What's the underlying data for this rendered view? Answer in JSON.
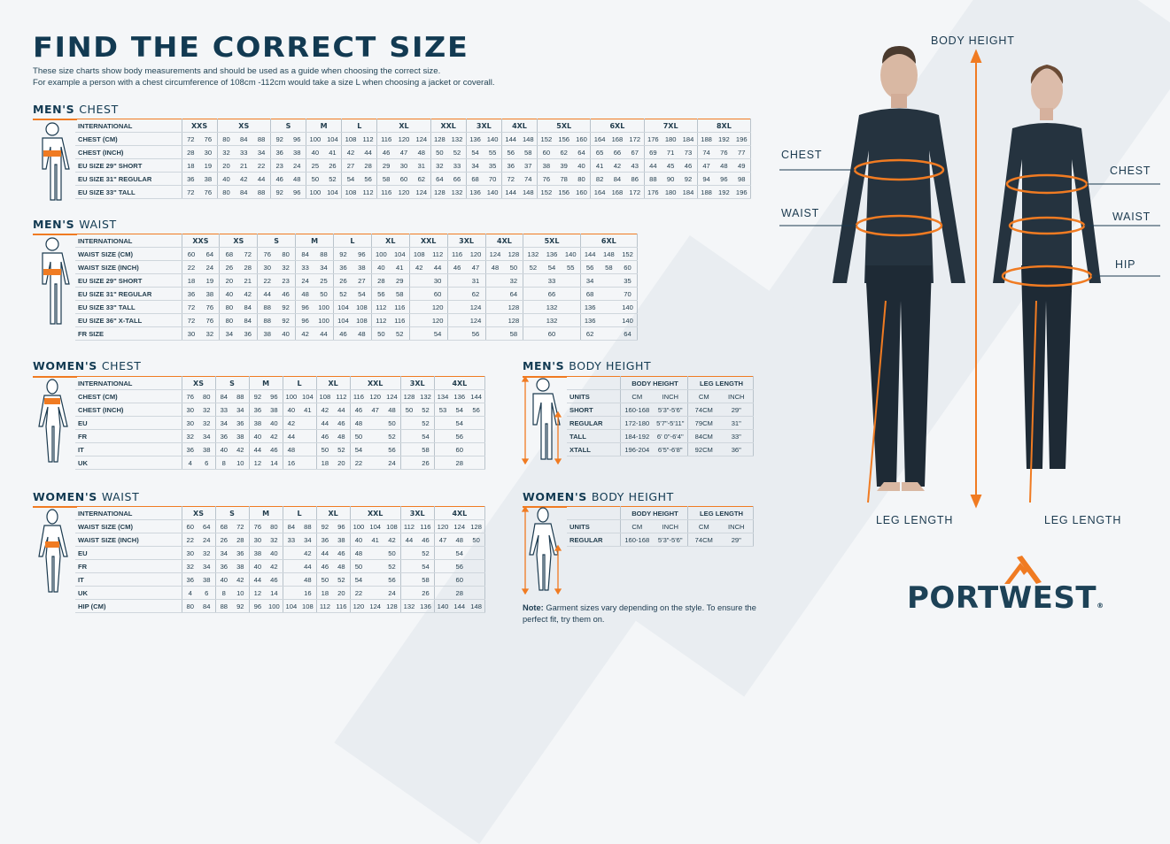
{
  "header": {
    "title": "FIND THE CORRECT SIZE",
    "line1": "These size charts show body measurements and should be used as a guide when choosing the correct size.",
    "line2": "For example a person with a chest circumference of 108cm -112cm would take a size L when choosing a jacket or coverall."
  },
  "colors": {
    "accent": "#f07b22",
    "navy": "#123a52"
  },
  "tables": {
    "mens_chest": {
      "heading_bold": "MEN'S",
      "heading_light": "CHEST",
      "header_label": "INTERNATIONAL",
      "sizes": [
        {
          "label": "XXS",
          "span": 2
        },
        {
          "label": "XS",
          "span": 3
        },
        {
          "label": "S",
          "span": 2
        },
        {
          "label": "M",
          "span": 2
        },
        {
          "label": "L",
          "span": 2
        },
        {
          "label": "XL",
          "span": 3
        },
        {
          "label": "XXL",
          "span": 2
        },
        {
          "label": "3XL",
          "span": 2
        },
        {
          "label": "4XL",
          "span": 2
        },
        {
          "label": "5XL",
          "span": 3
        },
        {
          "label": "6XL",
          "span": 3
        },
        {
          "label": "7XL",
          "span": 3
        },
        {
          "label": "8XL",
          "span": 3
        }
      ],
      "rows": [
        {
          "label": "CHEST (CM)",
          "cells": [
            "72",
            "76",
            "80",
            "84",
            "88",
            "92",
            "96",
            "100",
            "104",
            "108",
            "112",
            "116",
            "120",
            "124",
            "128",
            "132",
            "136",
            "140",
            "144",
            "148",
            "152",
            "156",
            "160",
            "164",
            "168",
            "172",
            "176",
            "180",
            "184",
            "188",
            "192",
            "196"
          ]
        },
        {
          "label": "CHEST (INCH)",
          "cells": [
            "28",
            "30",
            "32",
            "33",
            "34",
            "36",
            "38",
            "40",
            "41",
            "42",
            "44",
            "46",
            "47",
            "48",
            "50",
            "52",
            "54",
            "55",
            "56",
            "58",
            "60",
            "62",
            "64",
            "65",
            "66",
            "67",
            "69",
            "71",
            "73",
            "74",
            "76",
            "77"
          ]
        },
        {
          "label": "EU SIZE 29\" SHORT",
          "cells": [
            "18",
            "19",
            "20",
            "21",
            "22",
            "23",
            "24",
            "25",
            "26",
            "27",
            "28",
            "29",
            "30",
            "31",
            "32",
            "33",
            "34",
            "35",
            "36",
            "37",
            "38",
            "39",
            "40",
            "41",
            "42",
            "43",
            "44",
            "45",
            "46",
            "47",
            "48",
            "49"
          ]
        },
        {
          "label": "EU SIZE 31\" REGULAR",
          "cells": [
            "36",
            "38",
            "40",
            "42",
            "44",
            "46",
            "48",
            "50",
            "52",
            "54",
            "56",
            "58",
            "60",
            "62",
            "64",
            "66",
            "68",
            "70",
            "72",
            "74",
            "76",
            "78",
            "80",
            "82",
            "84",
            "86",
            "88",
            "90",
            "92",
            "94",
            "96",
            "98"
          ]
        },
        {
          "label": "EU SIZE 33\" TALL",
          "cells": [
            "72",
            "76",
            "80",
            "84",
            "88",
            "92",
            "96",
            "100",
            "104",
            "108",
            "112",
            "116",
            "120",
            "124",
            "128",
            "132",
            "136",
            "140",
            "144",
            "148",
            "152",
            "156",
            "160",
            "164",
            "168",
            "172",
            "176",
            "180",
            "184",
            "188",
            "192",
            "196"
          ]
        }
      ]
    },
    "mens_waist": {
      "heading_bold": "MEN'S",
      "heading_light": "WAIST",
      "header_label": "INTERNATIONAL",
      "sizes": [
        {
          "label": "XXS",
          "span": 2
        },
        {
          "label": "XS",
          "span": 2
        },
        {
          "label": "S",
          "span": 2
        },
        {
          "label": "M",
          "span": 2
        },
        {
          "label": "L",
          "span": 2
        },
        {
          "label": "XL",
          "span": 2
        },
        {
          "label": "XXL",
          "span": 2
        },
        {
          "label": "3XL",
          "span": 2
        },
        {
          "label": "4XL",
          "span": 2
        },
        {
          "label": "5XL",
          "span": 3
        },
        {
          "label": "6XL",
          "span": 3
        }
      ],
      "rows": [
        {
          "label": "WAIST SIZE (CM)",
          "cells": [
            "60",
            "64",
            "68",
            "72",
            "76",
            "80",
            "84",
            "88",
            "92",
            "96",
            "100",
            "104",
            "108",
            "112",
            "116",
            "120",
            "124",
            "128",
            "132",
            "136",
            "140",
            "144",
            "148",
            "152"
          ]
        },
        {
          "label": "WAIST SIZE (INCH)",
          "cells": [
            "22",
            "24",
            "26",
            "28",
            "30",
            "32",
            "33",
            "34",
            "36",
            "38",
            "40",
            "41",
            "42",
            "44",
            "46",
            "47",
            "48",
            "50",
            "52",
            "54",
            "55",
            "56",
            "58",
            "60"
          ]
        },
        {
          "label": "EU SIZE 29\" SHORT",
          "cells": [
            "18",
            "19",
            "20",
            "21",
            "22",
            "23",
            "24",
            "25",
            "26",
            "27",
            "28",
            "29",
            "",
            "30",
            "",
            "31",
            "",
            "32",
            "",
            "33",
            "",
            "34",
            "",
            "35"
          ]
        },
        {
          "label": "EU SIZE 31\" REGULAR",
          "cells": [
            "36",
            "38",
            "40",
            "42",
            "44",
            "46",
            "48",
            "50",
            "52",
            "54",
            "56",
            "58",
            "",
            "60",
            "",
            "62",
            "",
            "64",
            "",
            "66",
            "",
            "68",
            "",
            "70"
          ]
        },
        {
          "label": "EU SIZE 33\" TALL",
          "cells": [
            "72",
            "76",
            "80",
            "84",
            "88",
            "92",
            "96",
            "100",
            "104",
            "108",
            "112",
            "116",
            "",
            "120",
            "",
            "124",
            "",
            "128",
            "",
            "132",
            "",
            "136",
            "",
            "140"
          ]
        },
        {
          "label": "EU SIZE 36\" X-TALL",
          "cells": [
            "72",
            "76",
            "80",
            "84",
            "88",
            "92",
            "96",
            "100",
            "104",
            "108",
            "112",
            "116",
            "",
            "120",
            "",
            "124",
            "",
            "128",
            "",
            "132",
            "",
            "136",
            "",
            "140"
          ]
        },
        {
          "label": "FR SIZE",
          "cells": [
            "30",
            "32",
            "34",
            "36",
            "38",
            "40",
            "42",
            "44",
            "46",
            "48",
            "50",
            "52",
            "",
            "54",
            "",
            "56",
            "",
            "58",
            "",
            "60",
            "",
            "62",
            "",
            "64"
          ]
        }
      ]
    },
    "womens_chest": {
      "heading_bold": "WOMEN'S",
      "heading_light": "CHEST",
      "header_label": "INTERNATIONAL",
      "sizes": [
        {
          "label": "XS",
          "span": 2
        },
        {
          "label": "S",
          "span": 2
        },
        {
          "label": "M",
          "span": 2
        },
        {
          "label": "L",
          "span": 2
        },
        {
          "label": "XL",
          "span": 2
        },
        {
          "label": "XXL",
          "span": 3
        },
        {
          "label": "3XL",
          "span": 2
        },
        {
          "label": "4XL",
          "span": 3
        }
      ],
      "rows": [
        {
          "label": "CHEST (CM)",
          "cells": [
            "76",
            "80",
            "84",
            "88",
            "92",
            "96",
            "100",
            "104",
            "108",
            "112",
            "116",
            "120",
            "124",
            "128",
            "132",
            "134",
            "136",
            "144"
          ]
        },
        {
          "label": "CHEST (INCH)",
          "cells": [
            "30",
            "32",
            "33",
            "34",
            "36",
            "38",
            "40",
            "41",
            "42",
            "44",
            "46",
            "47",
            "48",
            "50",
            "52",
            "53",
            "54",
            "56"
          ]
        },
        {
          "label": "EU",
          "cells": [
            "30",
            "32",
            "34",
            "36",
            "38",
            "40",
            "42",
            "",
            "44",
            "46",
            "48",
            "",
            "50",
            "",
            "52",
            "",
            "54",
            ""
          ]
        },
        {
          "label": "FR",
          "cells": [
            "32",
            "34",
            "36",
            "38",
            "40",
            "42",
            "44",
            "",
            "46",
            "48",
            "50",
            "",
            "52",
            "",
            "54",
            "",
            "56",
            ""
          ]
        },
        {
          "label": "IT",
          "cells": [
            "36",
            "38",
            "40",
            "42",
            "44",
            "46",
            "48",
            "",
            "50",
            "52",
            "54",
            "",
            "56",
            "",
            "58",
            "",
            "60",
            ""
          ]
        },
        {
          "label": "UK",
          "cells": [
            "4",
            "6",
            "8",
            "10",
            "12",
            "14",
            "16",
            "",
            "18",
            "20",
            "22",
            "",
            "24",
            "",
            "26",
            "",
            "28",
            ""
          ]
        }
      ]
    },
    "womens_waist": {
      "heading_bold": "WOMEN'S",
      "heading_light": "WAIST",
      "header_label": "INTERNATIONAL",
      "sizes": [
        {
          "label": "XS",
          "span": 2
        },
        {
          "label": "S",
          "span": 2
        },
        {
          "label": "M",
          "span": 2
        },
        {
          "label": "L",
          "span": 2
        },
        {
          "label": "XL",
          "span": 2
        },
        {
          "label": "XXL",
          "span": 3
        },
        {
          "label": "3XL",
          "span": 2
        },
        {
          "label": "4XL",
          "span": 3
        }
      ],
      "rows": [
        {
          "label": "WAIST SIZE (CM)",
          "cells": [
            "60",
            "64",
            "68",
            "72",
            "76",
            "80",
            "84",
            "88",
            "92",
            "96",
            "100",
            "104",
            "108",
            "112",
            "116",
            "120",
            "124",
            "128"
          ]
        },
        {
          "label": "WAIST SIZE (INCH)",
          "cells": [
            "22",
            "24",
            "26",
            "28",
            "30",
            "32",
            "33",
            "34",
            "36",
            "38",
            "40",
            "41",
            "42",
            "44",
            "46",
            "47",
            "48",
            "50"
          ]
        },
        {
          "label": "EU",
          "cells": [
            "30",
            "32",
            "34",
            "36",
            "38",
            "40",
            "",
            "42",
            "44",
            "46",
            "48",
            "",
            "50",
            "",
            "52",
            "",
            "54",
            ""
          ]
        },
        {
          "label": "FR",
          "cells": [
            "32",
            "34",
            "36",
            "38",
            "40",
            "42",
            "",
            "44",
            "46",
            "48",
            "50",
            "",
            "52",
            "",
            "54",
            "",
            "56",
            ""
          ]
        },
        {
          "label": "IT",
          "cells": [
            "36",
            "38",
            "40",
            "42",
            "44",
            "46",
            "",
            "48",
            "50",
            "52",
            "54",
            "",
            "56",
            "",
            "58",
            "",
            "60",
            ""
          ]
        },
        {
          "label": "UK",
          "cells": [
            "4",
            "6",
            "8",
            "10",
            "12",
            "14",
            "",
            "16",
            "18",
            "20",
            "22",
            "",
            "24",
            "",
            "26",
            "",
            "28",
            ""
          ]
        },
        {
          "label": "HIP (CM)",
          "cells": [
            "80",
            "84",
            "88",
            "92",
            "96",
            "100",
            "104",
            "108",
            "112",
            "116",
            "120",
            "124",
            "128",
            "132",
            "136",
            "140",
            "144",
            "148"
          ]
        }
      ]
    },
    "mens_height": {
      "heading_bold": "MEN'S",
      "heading_light": "BODY HEIGHT",
      "groups": [
        "BODY HEIGHT",
        "LEG LENGTH"
      ],
      "units_label": "UNITS",
      "units": [
        "CM",
        "INCH",
        "CM",
        "INCH"
      ],
      "rows": [
        {
          "label": "SHORT",
          "cells": [
            "160-168",
            "5'3\"-5'6\"",
            "74CM",
            "29\""
          ]
        },
        {
          "label": "REGULAR",
          "cells": [
            "172-180",
            "5'7\"-5'11\"",
            "79CM",
            "31\""
          ]
        },
        {
          "label": "TALL",
          "cells": [
            "184-192",
            "6' 0\"-6'4\"",
            "84CM",
            "33\""
          ]
        },
        {
          "label": "XTALL",
          "cells": [
            "196-204",
            "6'5\"-6'8\"",
            "92CM",
            "36\""
          ]
        }
      ]
    },
    "womens_height": {
      "heading_bold": "WOMEN'S",
      "heading_light": "BODY HEIGHT",
      "groups": [
        "BODY HEIGHT",
        "LEG LENGTH"
      ],
      "units_label": "UNITS",
      "units": [
        "CM",
        "INCH",
        "CM",
        "INCH"
      ],
      "rows": [
        {
          "label": "REGULAR",
          "cells": [
            "160-168",
            "5'3\"-5'6\"",
            "74CM",
            "29\""
          ]
        }
      ]
    }
  },
  "note": {
    "bold": "Note:",
    "text": " Garment sizes vary depending on the style. To ensure the perfect fit, try them on."
  },
  "figure_labels": {
    "body_height": "BODY HEIGHT",
    "chest": "CHEST",
    "waist": "WAIST",
    "hip": "HIP",
    "leg_length": "LEG LENGTH"
  },
  "brand": {
    "logo_text": "PORTWEST",
    "registered": "®"
  }
}
